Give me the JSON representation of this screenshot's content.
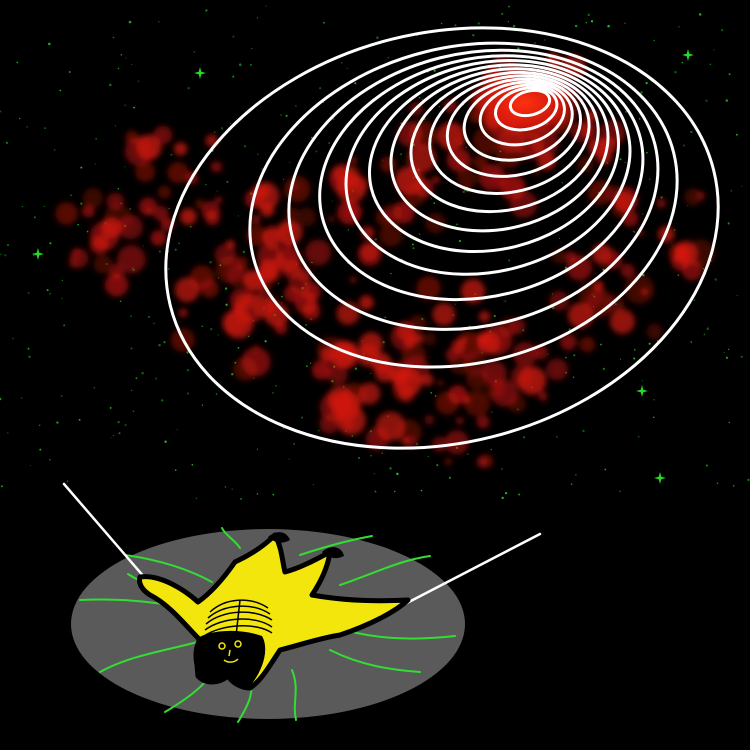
{
  "scene": {
    "background_color": "#000000",
    "nebula_color": "#d4180f",
    "ring_color": "#ffffff",
    "star_color": "#22dd22",
    "platform_color": "#5a5a5a",
    "root_color": "#33dd33",
    "figure_fill": "#f2e60c",
    "figure_outline": "#000000",
    "wire_color": "#ffffff",
    "ring_count": 14,
    "bright_star_count": 5
  }
}
